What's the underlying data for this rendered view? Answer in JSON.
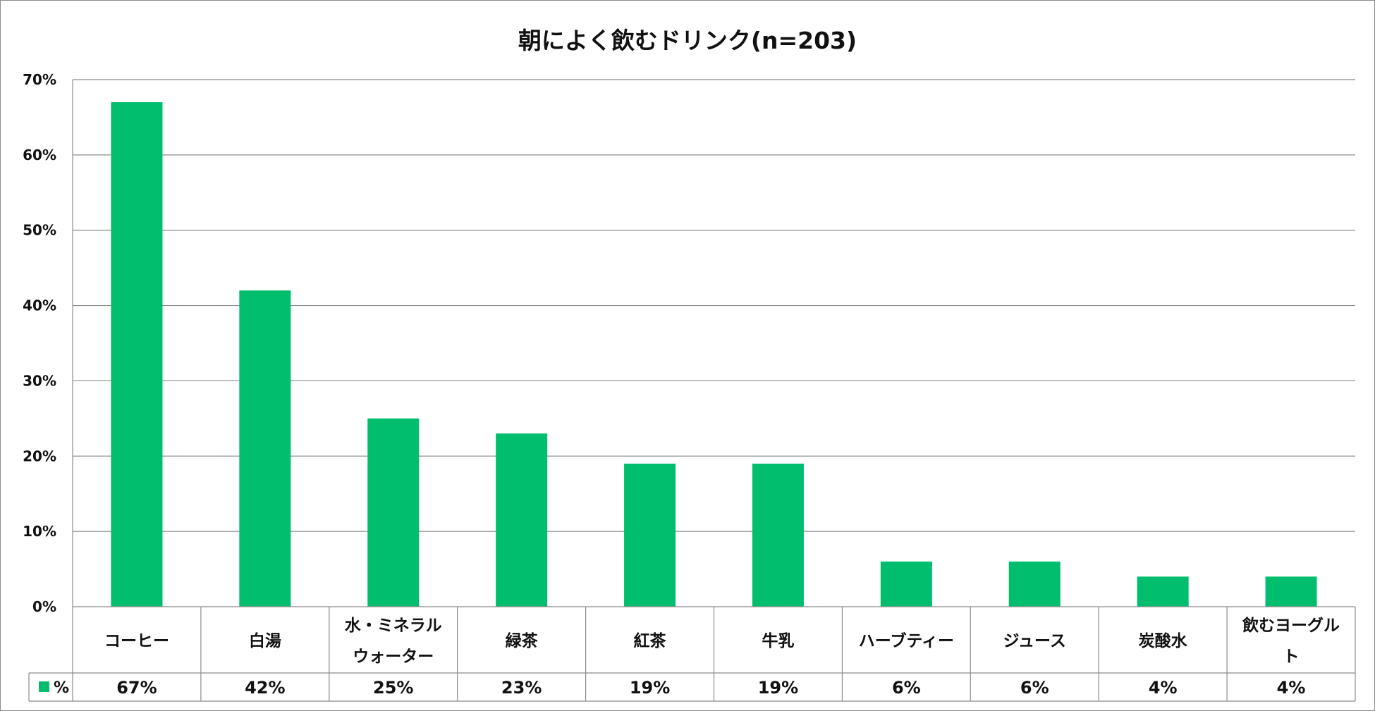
{
  "chart_data": {
    "type": "bar",
    "title": "朝によく飲むドリンク(n=203)",
    "xlabel": "",
    "ylabel": "",
    "ylim": [
      0,
      70
    ],
    "yticks": [
      "0%",
      "10%",
      "20%",
      "30%",
      "40%",
      "50%",
      "60%",
      "70%"
    ],
    "grid": true,
    "legend": "data-table",
    "categories": [
      [
        "コーヒー"
      ],
      [
        "白湯"
      ],
      [
        "水・ミネラル",
        "ウォーター"
      ],
      [
        "緑茶"
      ],
      [
        "紅茶"
      ],
      [
        "牛乳"
      ],
      [
        "ハーブティー"
      ],
      [
        "ジュース"
      ],
      [
        "炭酸水"
      ],
      [
        "飲むヨーグル",
        "ト"
      ]
    ],
    "series": [
      {
        "name": "%",
        "color": "#00BE6E",
        "values": [
          67,
          42,
          25,
          23,
          19,
          19,
          6,
          6,
          4,
          4
        ],
        "labels": [
          "67%",
          "42%",
          "25%",
          "23%",
          "19%",
          "19%",
          "6%",
          "6%",
          "4%",
          "4%"
        ]
      }
    ]
  }
}
